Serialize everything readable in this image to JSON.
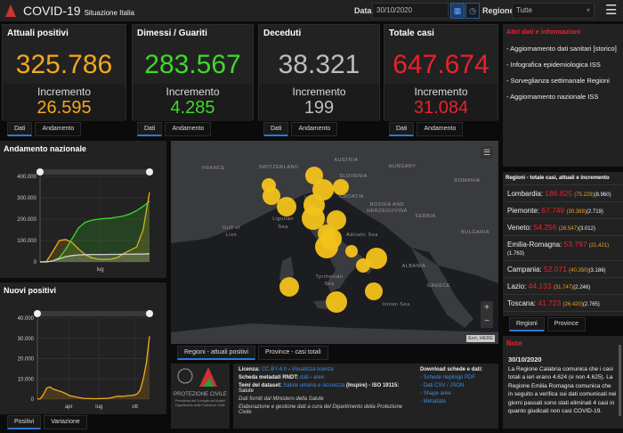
{
  "header": {
    "app_title": "COVID-19",
    "subtitle": "Situazione Italia",
    "date_label": "Data",
    "date_value": "30/10/2020",
    "region_label": "Regione",
    "region_value": "Tutte"
  },
  "cards": [
    {
      "title": "Attuali positivi",
      "value": "325.786",
      "incr_label": "Incremento",
      "incr": "26.595",
      "color": "#f4a91c",
      "tabs": [
        "Dati",
        "Andamento"
      ]
    },
    {
      "title": "Dimessi / Guariti",
      "value": "283.567",
      "incr_label": "Incremento",
      "incr": "4.285",
      "color": "#3ed92a",
      "tabs": [
        "Dati",
        "Andamento"
      ]
    },
    {
      "title": "Deceduti",
      "value": "38.321",
      "incr_label": "Incremento",
      "incr": "199",
      "color": "#bdbdbd",
      "tabs": [
        "Dati",
        "Andamento"
      ]
    },
    {
      "title": "Totale casi",
      "value": "647.674",
      "incr_label": "Incremento",
      "incr": "31.084",
      "color": "#e8232a",
      "tabs": [
        "Dati",
        "Andamento"
      ]
    }
  ],
  "info": {
    "title": "Altri dati e informazioni",
    "links": [
      "- Aggiornamento dati sanitari [storico]",
      "- Infografica epidemiologica ISS",
      "- Sorveglianza settimanale Regioni",
      "- Aggiornamento nazionale ISS"
    ]
  },
  "regions": {
    "title": "Regioni - totale casi, attuali e incremento",
    "items": [
      {
        "name": "Lombardia:",
        "total": "186.825",
        "active": "(75.229)",
        "incr": "(8.960)"
      },
      {
        "name": "Piemonte:",
        "total": "67.749",
        "active": "(30.388)",
        "incr": "(2.719)"
      },
      {
        "name": "Veneto:",
        "total": "54.256",
        "active": "(26.547)",
        "incr": "(3.012)"
      },
      {
        "name": "Emilia-Romagna:",
        "total": "53.797",
        "active": "(21.421)",
        "incr": "(1.763)"
      },
      {
        "name": "Campania:",
        "total": "52.071",
        "active": "(40.350)",
        "incr": "(3.186)"
      },
      {
        "name": "Lazio:",
        "total": "44.133",
        "active": "(31.747)",
        "incr": "(2.246)"
      },
      {
        "name": "Toscana:",
        "total": "41.723",
        "active": "(26.420)",
        "incr": "(2.765)"
      },
      {
        "name": "Liguria:",
        "total": "27.540",
        "active": "(8.322)",
        "incr": "(999)"
      }
    ],
    "tabs": [
      "Regioni",
      "Province"
    ]
  },
  "notes": {
    "title": "Note",
    "date": "30/10/2020",
    "text": "La Regione Calabria comunica che i casi totali a ieri erano 4.624 (e non 4.625). La Regione Emilia Romagna comunica che in seguito a verifica sui dati comunicati nei giorni passati sono stati eliminati 4 casi in quanto giudicati non casi COVID-19."
  },
  "map": {
    "tabs": [
      "Regioni - attuali positivi",
      "Province - casi totali"
    ],
    "attribution": "Esri, HERE",
    "zoom_in": "+",
    "zoom_out": "−",
    "labels": [
      "FRANCE",
      "SWITZERLAND",
      "AUSTRIA",
      "HUNGARY",
      "SLOVENIA",
      "ROMANIA",
      "CROATIA",
      "BOSNIA AND",
      "HERZEGOVINA",
      "SERBIA",
      "Ligurian",
      "Sea",
      "Gulf of",
      "Lion",
      "Adriatic Sea",
      "BULGARIA",
      "ALBANIA",
      "Tyrrhenian",
      "Sea",
      "GREECE",
      "Ionian Sea"
    ],
    "bubble_color": "#f2c21b"
  },
  "footer": {
    "logo_text": "PROTEZIONE CIVILE",
    "logo_sub1": "Presidenza del Consiglio dei Ministri",
    "logo_sub2": "Dipartimento della Protezione Civile",
    "licenza_label": "Licenza:",
    "licenza_link1": "CC-BY-4.0",
    "licenza_sep": " - ",
    "licenza_link2": "Visualizza licenza",
    "rndt_label": "Scheda metadati RNDT:",
    "rndt_link1": "dati",
    "rndt_link2": "aree",
    "temi_label": "Temi del dataset:",
    "temi_link": "Salute umana e sicurezza",
    "temi_rest": " (Inspire) - ISO 19115:",
    "temi_line2": "Salute",
    "line_fonti": "Dati forniti dal Ministero della Salute",
    "line_elab": "Elaborazione e gestione dati a cura del Dipartimento della Protezione Civile",
    "download_title": "Download schede e dati:",
    "downloads": [
      "- Schede riepilogo PDF",
      "- Dati CSV / JSON",
      "- Shape aree",
      "- Metadata"
    ]
  },
  "chart_data": [
    {
      "type": "area",
      "title": "Andamento nazionale",
      "ylim": [
        0,
        400000
      ],
      "yticks": [
        "0",
        "100.000",
        "200.000",
        "300.000",
        "400.000"
      ],
      "xticks": [
        "lug"
      ],
      "series": [
        {
          "name": "Attuali positivi",
          "color": "#f4a91c",
          "values": [
            0,
            2000,
            50000,
            100000,
            105000,
            90000,
            60000,
            35000,
            20000,
            13000,
            12000,
            13000,
            20000,
            40000,
            55000,
            70000,
            150000,
            325786
          ]
        },
        {
          "name": "Dimessi / Guariti",
          "color": "#3ed92a",
          "values": [
            0,
            0,
            5000,
            20000,
            60000,
            110000,
            160000,
            185000,
            195000,
            200000,
            203000,
            205000,
            210000,
            215000,
            225000,
            240000,
            260000,
            283567
          ]
        },
        {
          "name": "Deceduti",
          "color": "#cfcfcf",
          "values": [
            0,
            0,
            5000,
            15000,
            25000,
            30000,
            33000,
            34000,
            35000,
            35000,
            35000,
            35500,
            35500,
            36000,
            36000,
            36500,
            37000,
            38321
          ]
        }
      ],
      "tabs": []
    },
    {
      "type": "area",
      "title": "Nuovi positivi",
      "ylim": [
        0,
        40000
      ],
      "yticks": [
        "0",
        "10.000",
        "20.000",
        "30.000",
        "40.000"
      ],
      "xticks": [
        "apr",
        "lug",
        "ott"
      ],
      "series": [
        {
          "name": "Nuovi positivi",
          "color": "#f4a91c",
          "values": [
            0,
            200,
            2500,
            5500,
            6000,
            5000,
            4500,
            4000,
            3500,
            2800,
            2000,
            1500,
            1200,
            900,
            600,
            400,
            300,
            250,
            200,
            200,
            250,
            300,
            400,
            500,
            800,
            1200,
            1500,
            1400,
            1500,
            1700,
            1800,
            2000,
            2500,
            4500,
            10000,
            18000,
            31084
          ]
        }
      ],
      "tabs": [
        "Positivi",
        "Variazione"
      ]
    }
  ]
}
